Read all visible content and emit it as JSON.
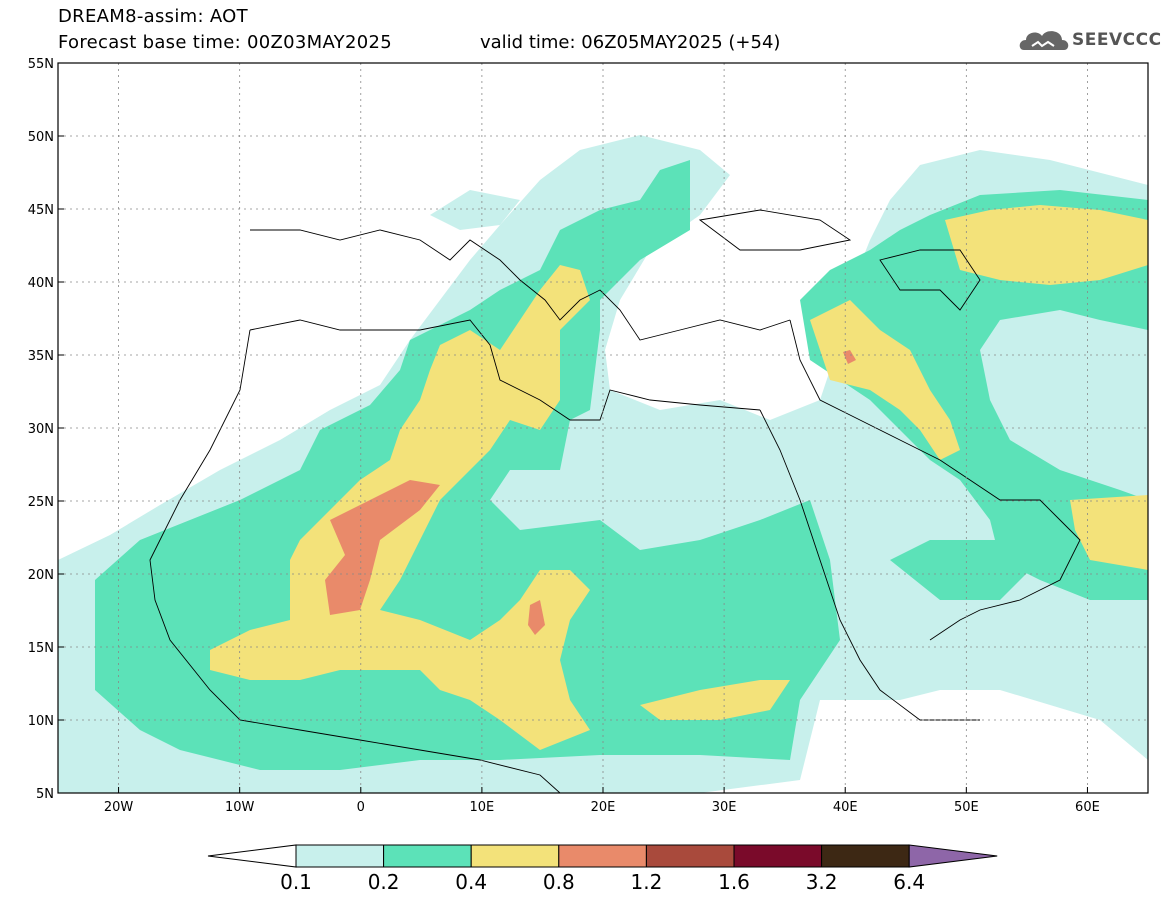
{
  "header": {
    "title_line1": "DREAM8-assim: AOT",
    "title_line2": "Forecast base time: 00Z03MAY2025",
    "valid_time": "valid time: 06Z05MAY2025 (+54)",
    "logo_text": "SEEVCCC",
    "logo_icon": "cloud-logo-icon"
  },
  "map": {
    "lon_range": [
      -25,
      65
    ],
    "lat_range": [
      5,
      55
    ],
    "lon_ticks": [
      {
        "lon": -20,
        "label": "20W"
      },
      {
        "lon": -10,
        "label": "10W"
      },
      {
        "lon": 0,
        "label": "0"
      },
      {
        "lon": 10,
        "label": "10E"
      },
      {
        "lon": 20,
        "label": "20E"
      },
      {
        "lon": 30,
        "label": "30E"
      },
      {
        "lon": 40,
        "label": "40E"
      },
      {
        "lon": 50,
        "label": "50E"
      },
      {
        "lon": 60,
        "label": "60E"
      }
    ],
    "lat_ticks": [
      {
        "lat": 5,
        "label": "5N"
      },
      {
        "lat": 10,
        "label": "10N"
      },
      {
        "lat": 15,
        "label": "15N"
      },
      {
        "lat": 20,
        "label": "20N"
      },
      {
        "lat": 25,
        "label": "25N"
      },
      {
        "lat": 30,
        "label": "30N"
      },
      {
        "lat": 35,
        "label": "35N"
      },
      {
        "lat": 40,
        "label": "40N"
      },
      {
        "lat": 45,
        "label": "45N"
      },
      {
        "lat": 50,
        "label": "50N"
      },
      {
        "lat": 55,
        "label": "55N"
      }
    ]
  },
  "colorbar": {
    "levels": [
      "0.1",
      "0.2",
      "0.4",
      "0.8",
      "1.2",
      "1.6",
      "3.2",
      "6.4"
    ],
    "colors": [
      "#ffffff",
      "#c8f0ec",
      "#5ce2b8",
      "#f3e27a",
      "#e98a6a",
      "#a94a3c",
      "#7a0a2a",
      "#3d2814",
      "#8e66a8"
    ]
  },
  "fill_colors": {
    "c1": "#c8f0ec",
    "c2": "#5ce2b8",
    "c3": "#f3e27a",
    "c4": "#e98a6a"
  }
}
